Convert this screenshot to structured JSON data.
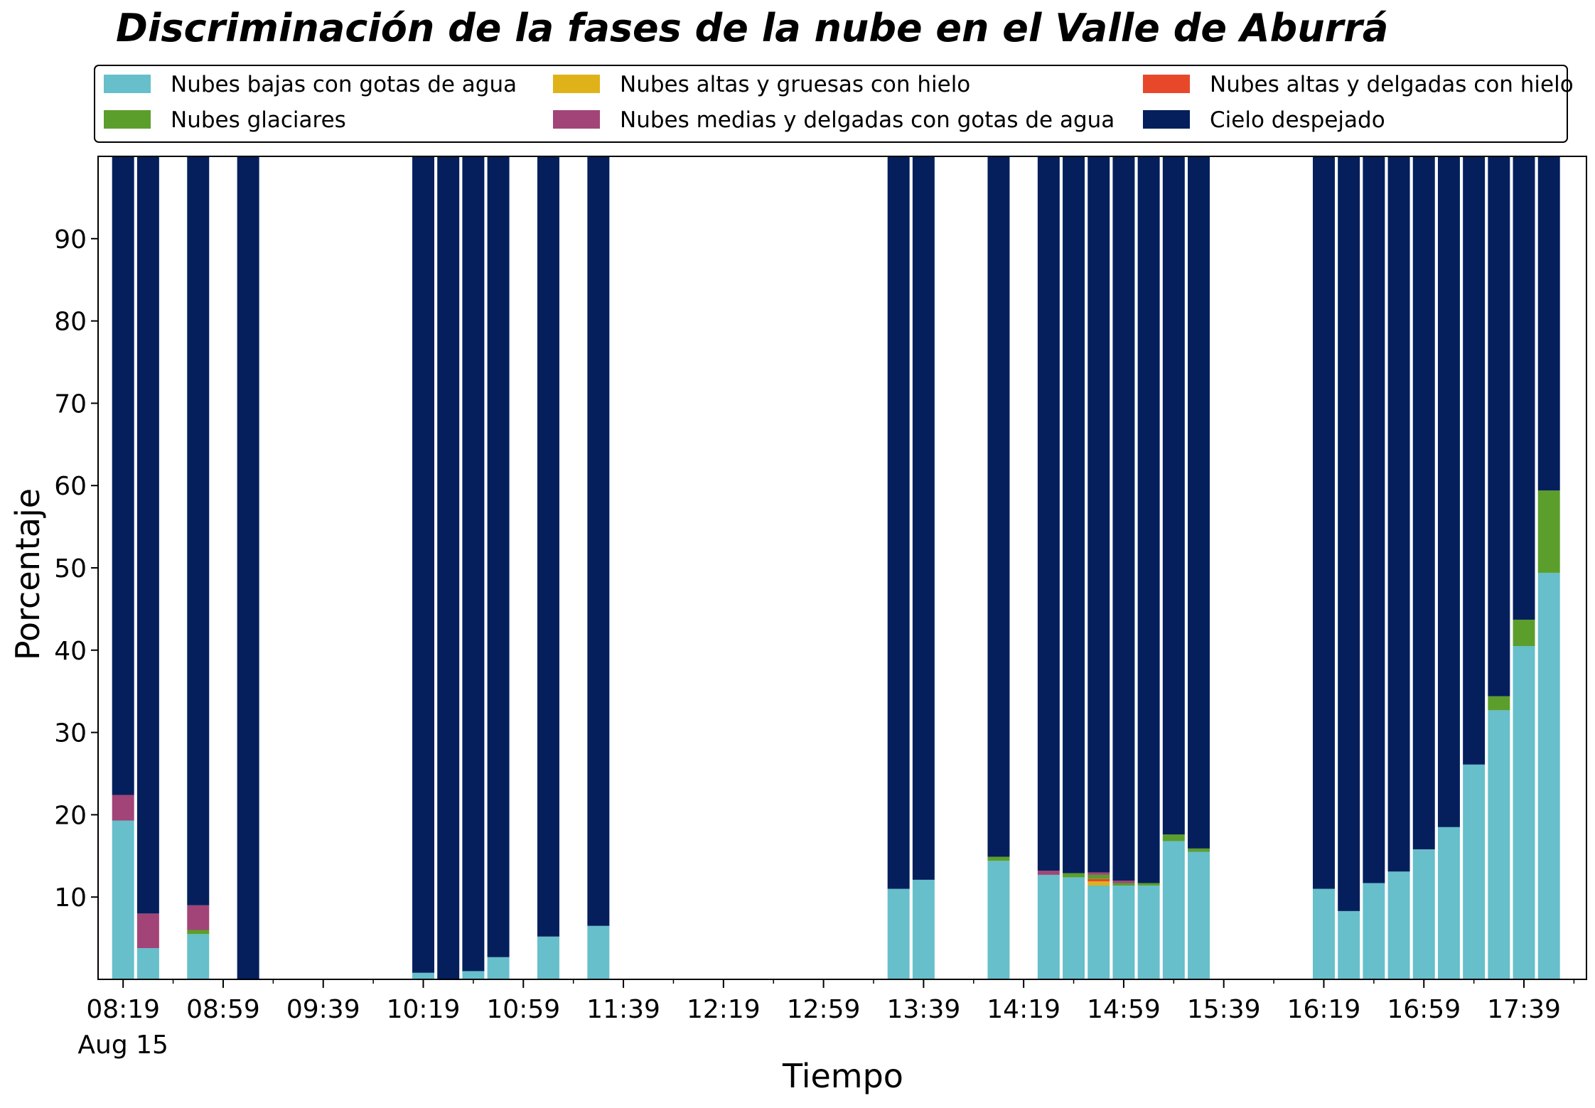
{
  "chart_data": {
    "type": "bar",
    "stacked": true,
    "title": "Discriminación de la fases de la nube en el Valle de Aburrá",
    "xlabel": "Tiempo",
    "ylabel": "Porcentaje",
    "ylim": [
      0,
      100
    ],
    "yticks": [
      10,
      20,
      30,
      40,
      50,
      60,
      70,
      80,
      90
    ],
    "xticks": [
      {
        "t": "08:19",
        "label": "08:19",
        "sublabel": "Aug 15"
      },
      {
        "t": "08:59",
        "label": "08:59"
      },
      {
        "t": "09:39",
        "label": "09:39"
      },
      {
        "t": "10:19",
        "label": "10:19"
      },
      {
        "t": "10:59",
        "label": "10:59"
      },
      {
        "t": "11:39",
        "label": "11:39"
      },
      {
        "t": "12:19",
        "label": "12:19"
      },
      {
        "t": "12:59",
        "label": "12:59"
      },
      {
        "t": "13:39",
        "label": "13:39"
      },
      {
        "t": "14:19",
        "label": "14:19"
      },
      {
        "t": "14:59",
        "label": "14:59"
      },
      {
        "t": "15:39",
        "label": "15:39"
      },
      {
        "t": "16:19",
        "label": "16:19"
      },
      {
        "t": "16:59",
        "label": "16:59"
      },
      {
        "t": "17:39",
        "label": "17:39"
      }
    ],
    "xlim": [
      "08:09",
      "18:04"
    ],
    "legend_placement": "top",
    "grid": false,
    "bar_interval_minutes": 10,
    "series": [
      {
        "name": "Nubes bajas con gotas de agua",
        "color": "#66bfca"
      },
      {
        "name": "Nubes altas y gruesas con hielo",
        "color": "#e0b21a"
      },
      {
        "name": "Nubes altas y delgadas con hielo",
        "color": "#e8482a"
      },
      {
        "name": "Nubes glaciares",
        "color": "#5c9e2b"
      },
      {
        "name": "Nubes medias y delgadas con gotas de agua",
        "color": "#a24477"
      },
      {
        "name": "Cielo despejado",
        "color": "#041f5c"
      }
    ],
    "legend_order": [
      0,
      3,
      1,
      4,
      2,
      5
    ],
    "bars": [
      {
        "t": "08:19",
        "values": [
          19.3,
          0,
          0,
          0,
          3.1,
          77.6
        ]
      },
      {
        "t": "08:29",
        "values": [
          3.8,
          0,
          0,
          0,
          4.2,
          92.0
        ]
      },
      {
        "t": "08:49",
        "values": [
          5.5,
          0,
          0,
          0.5,
          3.0,
          91.0
        ]
      },
      {
        "t": "09:09",
        "values": [
          0,
          0,
          0,
          0,
          0,
          100
        ]
      },
      {
        "t": "10:19",
        "values": [
          0.8,
          0,
          0,
          0,
          0,
          99.2
        ]
      },
      {
        "t": "10:29",
        "values": [
          0,
          0,
          0,
          0,
          0,
          100
        ]
      },
      {
        "t": "10:39",
        "values": [
          1.0,
          0,
          0,
          0,
          0,
          99.0
        ]
      },
      {
        "t": "10:49",
        "values": [
          2.7,
          0,
          0,
          0,
          0,
          97.3
        ]
      },
      {
        "t": "11:09",
        "values": [
          5.2,
          0,
          0,
          0,
          0,
          94.8
        ]
      },
      {
        "t": "11:29",
        "values": [
          6.5,
          0,
          0,
          0,
          0,
          93.5
        ]
      },
      {
        "t": "13:29",
        "values": [
          11.0,
          0,
          0,
          0,
          0,
          89.0
        ]
      },
      {
        "t": "13:39",
        "values": [
          12.1,
          0,
          0,
          0,
          0,
          87.9
        ]
      },
      {
        "t": "14:09",
        "values": [
          14.4,
          0,
          0,
          0.5,
          0,
          85.1
        ]
      },
      {
        "t": "14:29",
        "values": [
          12.7,
          0,
          0,
          0,
          0.5,
          86.8
        ]
      },
      {
        "t": "14:39",
        "values": [
          12.4,
          0,
          0,
          0.5,
          0,
          87.1
        ]
      },
      {
        "t": "14:49",
        "values": [
          11.4,
          0.5,
          0.3,
          0.5,
          0.3,
          87.0
        ]
      },
      {
        "t": "14:59",
        "values": [
          11.4,
          0,
          0,
          0.3,
          0.3,
          88.0
        ]
      },
      {
        "t": "15:09",
        "values": [
          11.4,
          0,
          0,
          0.3,
          0,
          88.3
        ]
      },
      {
        "t": "15:19",
        "values": [
          16.8,
          0,
          0,
          0.8,
          0,
          82.4
        ]
      },
      {
        "t": "15:29",
        "values": [
          15.5,
          0,
          0,
          0.4,
          0,
          84.1
        ]
      },
      {
        "t": "16:19",
        "values": [
          11.0,
          0,
          0,
          0,
          0,
          89.0
        ]
      },
      {
        "t": "16:29",
        "values": [
          8.3,
          0,
          0,
          0,
          0,
          91.7
        ]
      },
      {
        "t": "16:39",
        "values": [
          11.7,
          0,
          0,
          0,
          0,
          88.3
        ]
      },
      {
        "t": "16:49",
        "values": [
          13.1,
          0,
          0,
          0,
          0,
          86.9
        ]
      },
      {
        "t": "16:59",
        "values": [
          15.8,
          0,
          0,
          0,
          0,
          84.2
        ]
      },
      {
        "t": "17:09",
        "values": [
          18.5,
          0,
          0,
          0,
          0,
          81.5
        ]
      },
      {
        "t": "17:19",
        "values": [
          26.1,
          0,
          0,
          0,
          0,
          73.9
        ]
      },
      {
        "t": "17:29",
        "values": [
          32.7,
          0,
          0,
          1.7,
          0,
          65.6
        ]
      },
      {
        "t": "17:39",
        "values": [
          40.5,
          0,
          0,
          3.2,
          0,
          56.3
        ]
      },
      {
        "t": "17:49",
        "values": [
          49.4,
          0,
          0,
          10.0,
          0,
          40.6
        ]
      }
    ]
  }
}
